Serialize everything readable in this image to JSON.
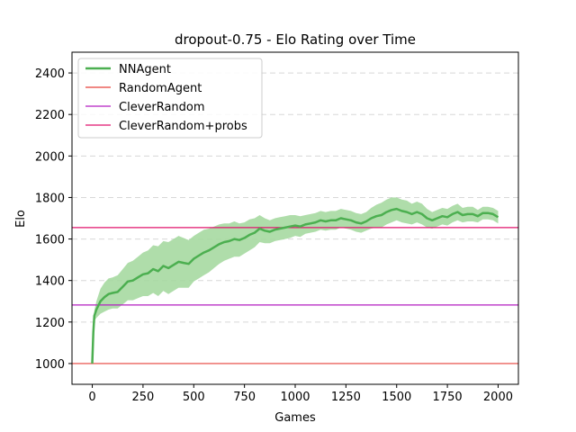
{
  "chart_data": {
    "type": "line",
    "title": "dropout-0.75 - Elo Rating over Time",
    "xlabel": "Games",
    "ylabel": "Elo",
    "xlim": [
      -100,
      2100
    ],
    "ylim": [
      900,
      2500
    ],
    "xticks": [
      0,
      250,
      500,
      750,
      1000,
      1250,
      1500,
      1750,
      2000
    ],
    "yticks": [
      1000,
      1200,
      1400,
      1600,
      1800,
      2000,
      2200,
      2400
    ],
    "grid": "y-dashed",
    "legend_position": "top-left",
    "series": [
      {
        "name": "NNAgent",
        "color": "#4caf50",
        "band_color": "#a6d9a1",
        "x": [
          0,
          5,
          10,
          20,
          40,
          60,
          80,
          100,
          125,
          150,
          175,
          200,
          225,
          250,
          275,
          300,
          325,
          350,
          375,
          400,
          425,
          450,
          475,
          500,
          525,
          550,
          575,
          600,
          625,
          650,
          675,
          700,
          725,
          750,
          775,
          800,
          825,
          850,
          875,
          900,
          925,
          950,
          975,
          1000,
          1025,
          1050,
          1075,
          1100,
          1125,
          1150,
          1175,
          1200,
          1225,
          1250,
          1275,
          1300,
          1325,
          1350,
          1375,
          1400,
          1425,
          1450,
          1475,
          1500,
          1525,
          1550,
          1575,
          1600,
          1625,
          1650,
          1675,
          1700,
          1725,
          1750,
          1775,
          1800,
          1825,
          1850,
          1875,
          1900,
          1925,
          1950,
          1975,
          2000
        ],
        "y": [
          1000,
          1150,
          1230,
          1260,
          1300,
          1320,
          1335,
          1340,
          1345,
          1370,
          1395,
          1400,
          1415,
          1430,
          1435,
          1455,
          1445,
          1470,
          1460,
          1475,
          1490,
          1485,
          1480,
          1505,
          1520,
          1535,
          1545,
          1560,
          1575,
          1585,
          1590,
          1600,
          1595,
          1605,
          1620,
          1630,
          1650,
          1640,
          1635,
          1645,
          1650,
          1655,
          1660,
          1665,
          1660,
          1670,
          1675,
          1680,
          1690,
          1685,
          1690,
          1690,
          1700,
          1695,
          1690,
          1680,
          1675,
          1685,
          1700,
          1710,
          1715,
          1730,
          1740,
          1745,
          1735,
          1730,
          1720,
          1730,
          1720,
          1700,
          1690,
          1700,
          1710,
          1705,
          1720,
          1730,
          1715,
          1720,
          1720,
          1710,
          1725,
          1725,
          1720,
          1705
        ],
        "band": [
          0,
          15,
          25,
          40,
          60,
          70,
          75,
          75,
          80,
          85,
          90,
          95,
          100,
          105,
          110,
          115,
          120,
          120,
          125,
          125,
          125,
          120,
          115,
          110,
          110,
          110,
          105,
          100,
          95,
          90,
          85,
          85,
          80,
          75,
          75,
          70,
          65,
          60,
          55,
          55,
          55,
          55,
          55,
          50,
          50,
          45,
          45,
          45,
          45,
          45,
          45,
          45,
          45,
          45,
          45,
          45,
          45,
          45,
          50,
          55,
          60,
          60,
          60,
          55,
          55,
          55,
          50,
          50,
          50,
          45,
          40,
          40,
          40,
          40,
          40,
          40,
          35,
          35,
          35,
          30,
          30,
          30,
          30,
          30
        ]
      },
      {
        "name": "RandomAgent",
        "color": "#e6403a",
        "constant": 1000
      },
      {
        "name": "CleverRandom",
        "color": "#b41fc2",
        "constant": 1282
      },
      {
        "name": "CleverRandom+probs",
        "color": "#e0156e",
        "constant": 1655
      }
    ]
  }
}
